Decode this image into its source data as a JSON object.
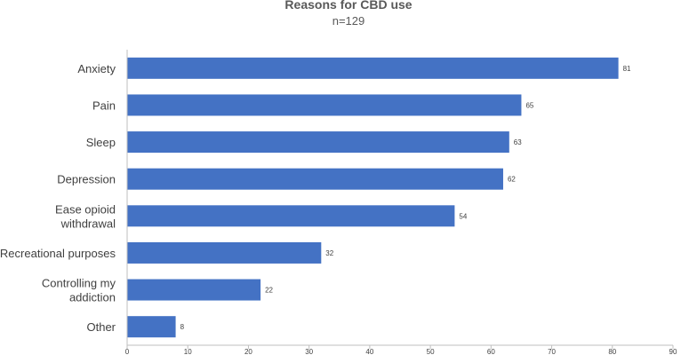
{
  "chart_data": {
    "type": "bar",
    "orientation": "horizontal",
    "title": "Reasons for CBD use",
    "subtitle": "n=129",
    "categories": [
      [
        "Anxiety"
      ],
      [
        "Pain"
      ],
      [
        "Sleep"
      ],
      [
        "Depression"
      ],
      [
        "Ease opioid",
        "withdrawal"
      ],
      [
        "Recreational purposes"
      ],
      [
        "Controlling my",
        "addiction"
      ],
      [
        "Other"
      ]
    ],
    "values": [
      81,
      65,
      63,
      62,
      54,
      32,
      22,
      8
    ],
    "xlim": [
      0,
      90
    ],
    "xticks": [
      0,
      10,
      20,
      30,
      40,
      50,
      60,
      70,
      80,
      90
    ],
    "xlabel": "",
    "ylabel": "",
    "grid": false,
    "bar_color": "#4472C4",
    "axis_color": "#BFBFBF"
  }
}
